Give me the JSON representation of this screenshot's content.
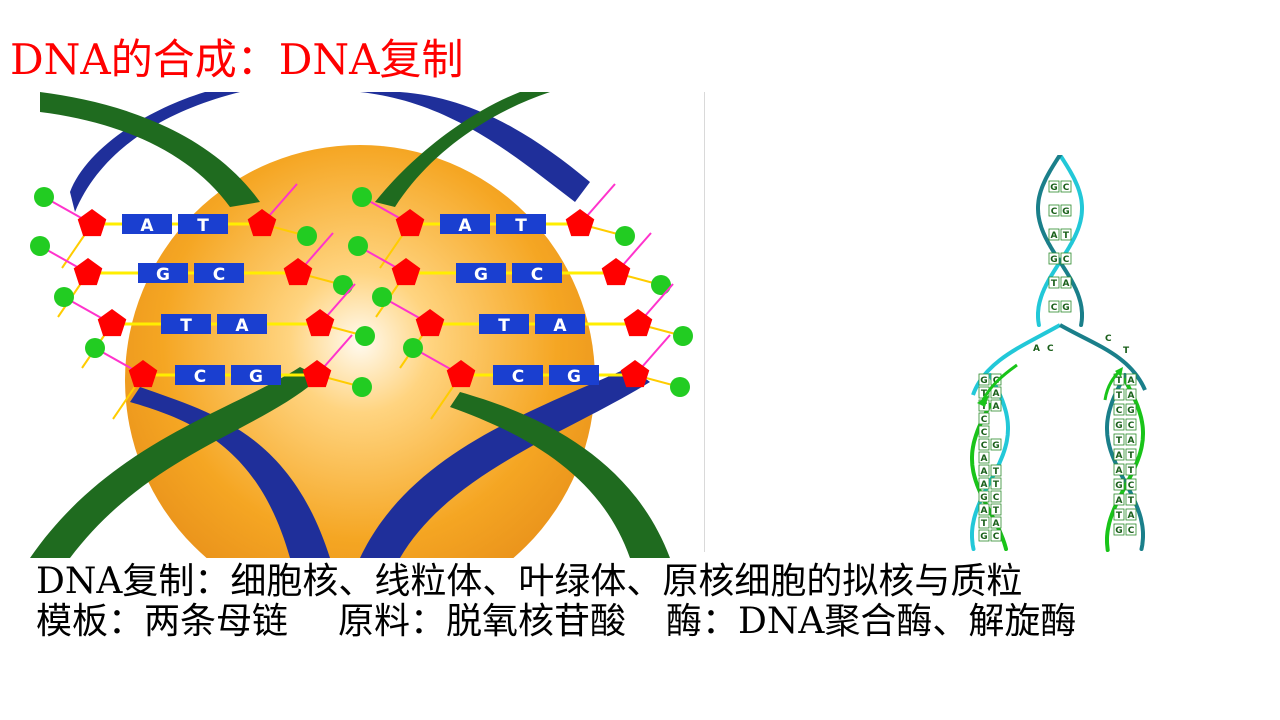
{
  "slide": {
    "title": "DNA的合成：DNA复制",
    "body": {
      "line1": "DNA复制：细胞核、线粒体、叶绿体、原核细胞的拟核与质粒",
      "template_text": "模板：两条母链",
      "material_text": "原料：脱氧核苷酸",
      "enzyme_text": "酶：DNA聚合酶、解旋酶"
    }
  },
  "figure_left": {
    "base_pairs_left": [
      [
        "A",
        "T"
      ],
      [
        "G",
        "C"
      ],
      [
        "T",
        "A"
      ],
      [
        "C",
        "G"
      ]
    ],
    "base_pairs_right": [
      [
        "A",
        "T"
      ],
      [
        "G",
        "C"
      ],
      [
        "T",
        "A"
      ],
      [
        "C",
        "G"
      ]
    ],
    "colors": {
      "sphere": "#f5a623",
      "strand_green": "#1f6b1f",
      "strand_blue": "#1f2f9a",
      "sugar": "#ff0000",
      "phosphate": "#22cc22",
      "base_box": "#1a3fd0"
    }
  },
  "figure_right": {
    "top_pairs": [
      [
        "G",
        "C"
      ],
      [
        "C",
        "G"
      ],
      [
        "A",
        "T"
      ],
      [
        "G",
        "C"
      ],
      [
        "T",
        "A"
      ],
      [
        "C",
        "G"
      ]
    ],
    "fork_left": [
      "A",
      "C"
    ],
    "fork_right": [
      "C",
      "T"
    ],
    "left_daughter": [
      [
        "G",
        "C"
      ],
      [
        "T",
        "A"
      ],
      [
        "T",
        "A"
      ],
      [
        "C"
      ],
      [
        "C"
      ],
      [
        "C",
        "G"
      ],
      [
        "A"
      ],
      [
        "A",
        "T"
      ],
      [
        "A",
        "T"
      ],
      [
        "G",
        "C"
      ],
      [
        "A",
        "T"
      ],
      [
        "T",
        "A"
      ],
      [
        "G",
        "C"
      ]
    ],
    "right_daughter": [
      [
        "T",
        "A"
      ],
      [
        "T",
        "A"
      ],
      [
        "C",
        "G"
      ],
      [
        "G",
        "C"
      ],
      [
        "T",
        "A"
      ],
      [
        "A",
        "T"
      ],
      [
        "A",
        "T"
      ],
      [
        "G",
        "C"
      ],
      [
        "A",
        "T"
      ],
      [
        "T",
        "A"
      ],
      [
        "G",
        "C"
      ]
    ],
    "colors": {
      "cyan": "#22c8d8",
      "teal": "#1a7f8a",
      "green": "#19c419"
    }
  }
}
